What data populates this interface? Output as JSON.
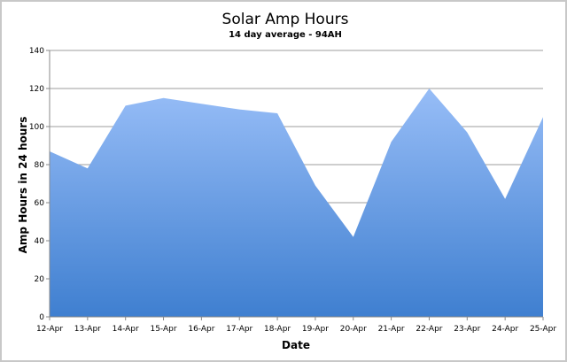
{
  "chart_data": {
    "type": "area",
    "title": "Solar Amp Hours",
    "subtitle": "14 day average - 94AH",
    "xlabel": "Date",
    "ylabel": "Amp Hours in 24 hours",
    "categories": [
      "12-Apr",
      "13-Apr",
      "14-Apr",
      "15-Apr",
      "16-Apr",
      "17-Apr",
      "18-Apr",
      "19-Apr",
      "20-Apr",
      "21-Apr",
      "22-Apr",
      "23-Apr",
      "24-Apr",
      "25-Apr"
    ],
    "values": [
      87,
      78,
      111,
      115,
      112,
      109,
      107,
      69,
      42,
      92,
      120,
      97,
      62,
      105
    ],
    "ylim": [
      0,
      140
    ],
    "yticks": [
      0,
      20,
      40,
      60,
      80,
      100,
      120,
      140
    ],
    "grid": true,
    "fill_top_color": "#97bdf7",
    "fill_bottom_color": "#3f7fd0",
    "grid_color": "#b0b0b0"
  }
}
